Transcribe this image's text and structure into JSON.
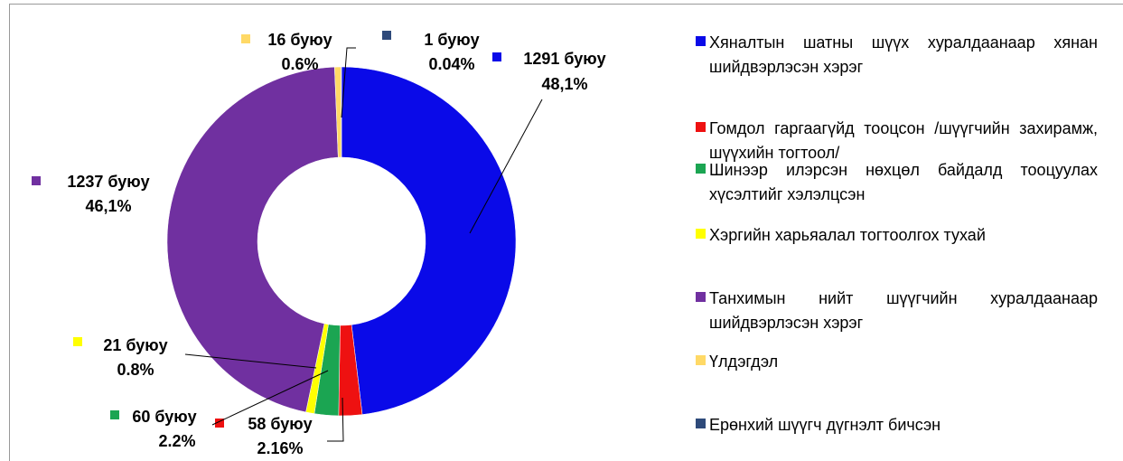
{
  "chart_data": {
    "type": "donut",
    "series": [
      {
        "name": "Хяналтын шатны шүүх хуралдаанаар хянан шийдвэрлэсэн хэрэг",
        "color": "#0a0ae8"
      },
      {
        "name": "Гомдол гаргаагүйд тооцсон /шүүгчийн захирамж, шүүхийн тогтоол/",
        "color": "#ee1111"
      },
      {
        "name": "Шинээр илэрсэн нөхцөл байдалд тооцуулах хүсэлтийг хэлэлцсэн",
        "color": "#1ba552"
      },
      {
        "name": "Хэргийн харьяалал тогтоолгох тухай",
        "color": "#ffff00"
      },
      {
        "name": "Танхимын нийт шүүгчийн хуралдаанаар шийдвэрлэсэн хэрэг",
        "color": "#7030a0"
      },
      {
        "name": "Үлдэгдэл",
        "color": "#ffd966"
      },
      {
        "name": "Ерөнхий шүүгч дүгнэлт бичсэн",
        "color": "#2e4a7a"
      }
    ],
    "values": [
      1291,
      58,
      60,
      21,
      1237,
      16,
      1
    ],
    "value_labels": [
      "1291 буюу",
      "58 буюу",
      "60 буюу",
      "21 буюу",
      "1237 буюу",
      "16 буюу",
      "1 буюу"
    ],
    "percent_labels": [
      "48,1%",
      "2.16%",
      "2.2%",
      "0.8%",
      "46,1%",
      "0.6%",
      "0.04%"
    ]
  }
}
